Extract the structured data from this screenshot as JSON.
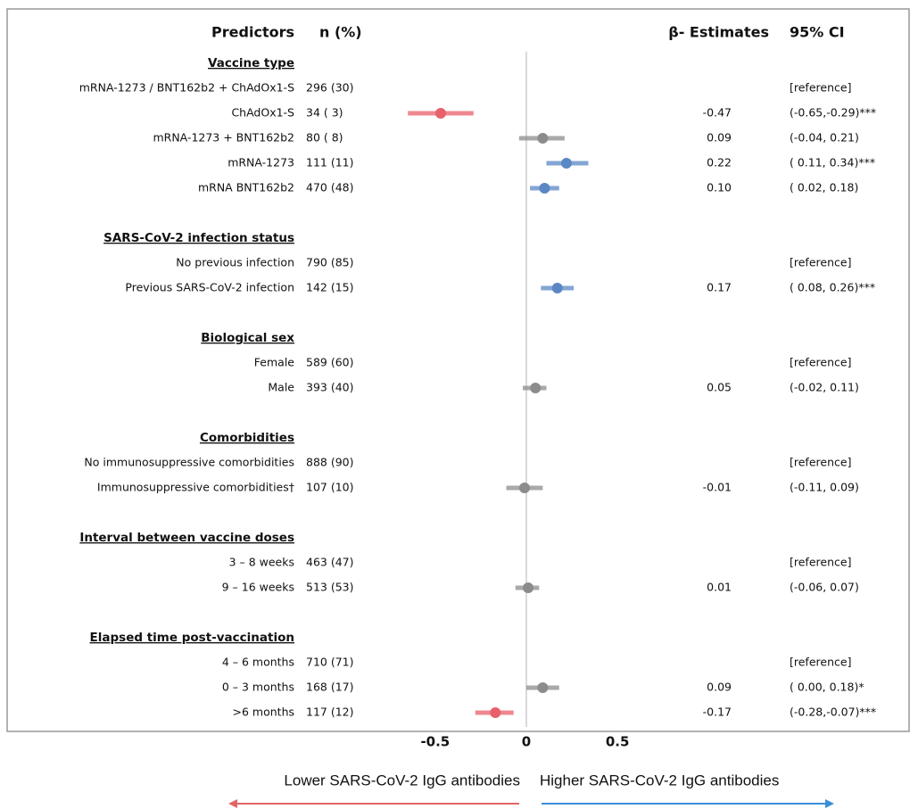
{
  "chart_data": {
    "type": "forest",
    "headers": {
      "predictors": "Predictors",
      "n": "n (%)",
      "estimates": "β- Estimates",
      "ci": "95% CI"
    },
    "xlim": [
      -0.7,
      0.7
    ],
    "xticks": [
      -0.5,
      0,
      0.5
    ],
    "sections": [
      {
        "heading": "Vaccine type",
        "categories": [
          "mRNA-1273 / BNT162b2 + ChAdOx1-S",
          "ChAdOx1-S",
          "mRNA-1273 + BNT162b2",
          "mRNA-1273",
          "mRNA BNT162b2"
        ],
        "n_labels": [
          "296 (30)",
          "34 ( 3)",
          "80 ( 8)",
          "111 (11)",
          "470 (48)"
        ],
        "values": [
          null,
          -0.47,
          0.09,
          0.22,
          0.1
        ],
        "value_labels": [
          null,
          "-0.47",
          "0.09",
          "0.22",
          "0.10"
        ],
        "ci_lower": [
          null,
          -0.65,
          -0.04,
          0.11,
          0.02
        ],
        "ci_upper": [
          null,
          -0.29,
          0.21,
          0.34,
          0.18
        ],
        "ci_labels": [
          "[reference]",
          "(-0.65,-0.29)***",
          "(-0.04, 0.21)",
          "( 0.11, 0.34)***",
          "( 0.02, 0.18)"
        ],
        "colors": [
          null,
          "#e8606a",
          "#8c8c8c",
          "#5b87c5",
          "#5b87c5"
        ]
      },
      {
        "heading": "SARS-CoV-2 infection status",
        "categories": [
          "No previous infection",
          "Previous SARS-CoV-2 infection"
        ],
        "n_labels": [
          "790 (85)",
          "142 (15)"
        ],
        "values": [
          null,
          0.17
        ],
        "value_labels": [
          null,
          "0.17"
        ],
        "ci_lower": [
          null,
          0.08
        ],
        "ci_upper": [
          null,
          0.26
        ],
        "ci_labels": [
          "[reference]",
          "( 0.08, 0.26)***"
        ],
        "colors": [
          null,
          "#5b87c5"
        ]
      },
      {
        "heading": "Biological sex",
        "categories": [
          "Female",
          "Male"
        ],
        "n_labels": [
          "589 (60)",
          "393 (40)"
        ],
        "values": [
          null,
          0.05
        ],
        "value_labels": [
          null,
          "0.05"
        ],
        "ci_lower": [
          null,
          -0.02
        ],
        "ci_upper": [
          null,
          0.11
        ],
        "ci_labels": [
          "[reference]",
          "(-0.02, 0.11)"
        ],
        "colors": [
          null,
          "#8c8c8c"
        ]
      },
      {
        "heading": "Comorbidities",
        "categories": [
          "No immunosuppressive comorbidities",
          "Immunosuppressive comorbidities†"
        ],
        "n_labels": [
          "888 (90)",
          "107 (10)"
        ],
        "values": [
          null,
          -0.01
        ],
        "value_labels": [
          null,
          "-0.01"
        ],
        "ci_lower": [
          null,
          -0.11
        ],
        "ci_upper": [
          null,
          0.09
        ],
        "ci_labels": [
          "[reference]",
          "(-0.11, 0.09)"
        ],
        "colors": [
          null,
          "#8c8c8c"
        ]
      },
      {
        "heading": "Interval between vaccine doses",
        "categories": [
          "3 – 8 weeks",
          "9 – 16 weeks"
        ],
        "n_labels": [
          "463 (47)",
          "513 (53)"
        ],
        "values": [
          null,
          0.01
        ],
        "value_labels": [
          null,
          "0.01"
        ],
        "ci_lower": [
          null,
          -0.06
        ],
        "ci_upper": [
          null,
          0.07
        ],
        "ci_labels": [
          "[reference]",
          "(-0.06, 0.07)"
        ],
        "colors": [
          null,
          "#8c8c8c"
        ]
      },
      {
        "heading": "Elapsed time post-vaccination",
        "categories": [
          "4 – 6 months",
          "0 – 3 months",
          ">6 months"
        ],
        "n_labels": [
          "710 (71)",
          "168 (17)",
          "117 (12)"
        ],
        "values": [
          null,
          0.09,
          -0.17
        ],
        "value_labels": [
          null,
          "0.09",
          "-0.17"
        ],
        "ci_lower": [
          null,
          0.0,
          -0.28
        ],
        "ci_upper": [
          null,
          0.18,
          -0.07
        ],
        "ci_labels": [
          "[reference]",
          "( 0.00, 0.18)*",
          "(-0.28,-0.07)***"
        ],
        "colors": [
          null,
          "#8c8c8c",
          "#e8606a"
        ]
      }
    ],
    "annotations": {
      "lower": "Lower SARS-CoV-2 IgG antibodies",
      "higher": "Higher SARS-CoV-2 IgG antibodies",
      "lower_color": "#e06666",
      "higher_color": "#3a8fd8"
    }
  }
}
